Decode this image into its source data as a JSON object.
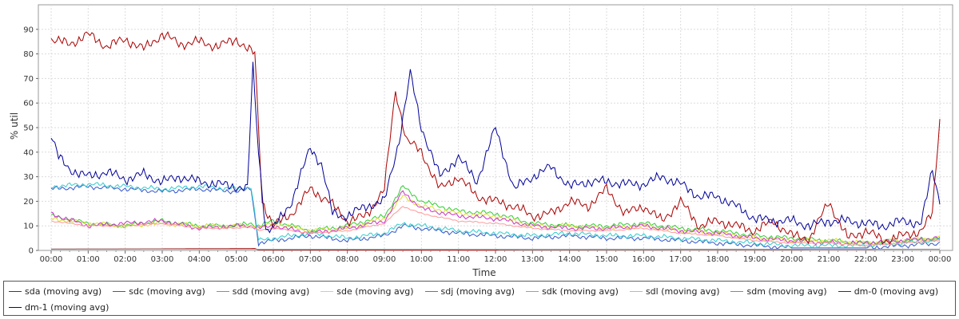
{
  "chart_data": {
    "type": "line",
    "title": "",
    "xlabel": "Time",
    "ylabel": "% util",
    "ylim": [
      0,
      100
    ],
    "y_ticks": [
      0,
      10,
      20,
      30,
      40,
      50,
      60,
      70,
      80,
      90
    ],
    "x_ticks": [
      "00:00",
      "01:00",
      "02:00",
      "03:00",
      "04:00",
      "05:00",
      "06:00",
      "07:00",
      "08:00",
      "09:00",
      "10:00",
      "11:00",
      "12:00",
      "13:00",
      "14:00",
      "15:00",
      "16:00",
      "17:00",
      "18:00",
      "19:00",
      "20:00",
      "21:00",
      "22:00",
      "23:00",
      "00:00"
    ],
    "grid": true,
    "legend_position": "bottom",
    "series": [
      {
        "name": "sda (moving avg)",
        "color": "#cc0000",
        "x": [
          0,
          5.5,
          5.6,
          12,
          12.1,
          24
        ],
        "values": [
          0.5,
          0.8,
          0.2,
          0.1,
          0.3,
          0.5
        ]
      },
      {
        "name": "sdc (moving avg)",
        "color": "#3355cc",
        "x": [
          0,
          1,
          2,
          3,
          4,
          5,
          5.4,
          5.6,
          6,
          7,
          8,
          9,
          9.5,
          10,
          11,
          12,
          13,
          14,
          15,
          16,
          17,
          18,
          19,
          20,
          21,
          22,
          23,
          24
        ],
        "values": [
          25,
          26,
          25,
          24,
          25,
          24,
          25,
          3,
          4,
          6,
          4,
          6,
          10,
          9,
          7,
          6,
          5,
          6,
          5,
          5,
          4,
          3,
          2,
          1,
          1,
          1,
          2,
          3
        ]
      },
      {
        "name": "sdd (moving avg)",
        "color": "#33cc33",
        "x": [
          0,
          1,
          2,
          3,
          4,
          5,
          5.4,
          5.6,
          6,
          7,
          8,
          9,
          9.5,
          10,
          11,
          12,
          13,
          14,
          15,
          16,
          17,
          18,
          19,
          20,
          21,
          22,
          23,
          24
        ],
        "values": [
          14,
          11,
          10,
          12,
          10,
          10,
          11,
          10,
          12,
          8,
          10,
          14,
          26,
          20,
          16,
          15,
          11,
          10,
          10,
          11,
          9,
          8,
          6,
          5,
          4,
          3,
          4,
          5
        ]
      },
      {
        "name": "sde (moving avg)",
        "color": "#dddd33",
        "x": [
          0,
          1,
          2,
          3,
          4,
          5,
          5.4,
          5.6,
          6,
          7,
          8,
          9,
          9.5,
          10,
          11,
          12,
          13,
          14,
          15,
          16,
          17,
          18,
          19,
          20,
          21,
          22,
          23,
          24
        ],
        "values": [
          13,
          11,
          10,
          11,
          10,
          10,
          10,
          9,
          11,
          8,
          9,
          13,
          22,
          18,
          15,
          14,
          10,
          10,
          9,
          10,
          8,
          7,
          5,
          4,
          4,
          3,
          4,
          5
        ]
      },
      {
        "name": "sdj (moving avg)",
        "color": "#cc33cc",
        "x": [
          0,
          1,
          2,
          3,
          4,
          5,
          5.4,
          5.6,
          6,
          7,
          8,
          9,
          9.5,
          10,
          11,
          12,
          13,
          14,
          15,
          16,
          17,
          18,
          19,
          20,
          21,
          22,
          23,
          24
        ],
        "values": [
          15,
          10,
          11,
          12,
          9,
          10,
          10,
          9,
          10,
          7,
          9,
          12,
          24,
          17,
          14,
          13,
          10,
          9,
          9,
          10,
          8,
          7,
          5,
          4,
          3,
          3,
          4,
          5
        ]
      },
      {
        "name": "sdk (moving avg)",
        "color": "#33cccc",
        "x": [
          0,
          1,
          2,
          3,
          4,
          5,
          5.4,
          5.6,
          6,
          7,
          8,
          9,
          9.5,
          10,
          11,
          12,
          13,
          14,
          15,
          16,
          17,
          18,
          19,
          20,
          21,
          22,
          23,
          24
        ],
        "values": [
          26,
          27,
          26,
          25,
          26,
          25,
          26,
          4,
          5,
          7,
          5,
          7,
          11,
          10,
          8,
          7,
          6,
          7,
          6,
          6,
          5,
          4,
          3,
          2,
          2,
          2,
          3,
          4
        ]
      },
      {
        "name": "sdl (moving avg)",
        "color": "#ff9999",
        "x": [
          0,
          1,
          2,
          3,
          4,
          5,
          5.4,
          5.6,
          6,
          7,
          8,
          9,
          9.5,
          10,
          11,
          12,
          13,
          14,
          15,
          16,
          17,
          18,
          19,
          20,
          21,
          22,
          23,
          24
        ],
        "values": [
          12,
          10,
          10,
          11,
          9,
          9,
          10,
          8,
          9,
          7,
          8,
          11,
          18,
          15,
          12,
          11,
          9,
          8,
          8,
          9,
          7,
          6,
          4,
          3,
          3,
          2,
          3,
          4
        ]
      },
      {
        "name": "sdm (moving avg)",
        "color": "#888888",
        "x": [
          0,
          5.5,
          5.6,
          12,
          24
        ],
        "values": [
          0.6,
          0.6,
          0.4,
          0.4,
          0.5
        ]
      },
      {
        "name": "dm-0 (moving avg)",
        "color": "#aa0000",
        "x": [
          0,
          0.5,
          1,
          1.5,
          2,
          2.5,
          3,
          3.5,
          4,
          4.5,
          5,
          5.3,
          5.5,
          5.7,
          6,
          6.5,
          7,
          7.5,
          8,
          8.5,
          9,
          9.3,
          9.6,
          10,
          10.5,
          11,
          11.5,
          12,
          12.5,
          13,
          13.5,
          14,
          14.5,
          15,
          15.5,
          16,
          16.5,
          17,
          17.5,
          18,
          18.5,
          19,
          19.5,
          20,
          20.5,
          21,
          21.5,
          22,
          22.5,
          23,
          23.5,
          23.8,
          24
        ],
        "values": [
          86,
          84,
          88,
          83,
          86,
          82,
          88,
          84,
          85,
          83,
          86,
          82,
          80,
          20,
          10,
          15,
          25,
          20,
          12,
          14,
          25,
          65,
          45,
          40,
          25,
          30,
          22,
          20,
          18,
          14,
          15,
          20,
          18,
          25,
          15,
          18,
          12,
          20,
          10,
          12,
          10,
          8,
          12,
          6,
          5,
          20,
          5,
          8,
          4,
          6,
          8,
          15,
          54
        ]
      },
      {
        "name": "dm-1 (moving avg)",
        "color": "#000099",
        "x": [
          0,
          0.2,
          0.5,
          1,
          1.5,
          2,
          2.5,
          3,
          3.5,
          4,
          4.5,
          5,
          5.3,
          5.45,
          5.6,
          5.8,
          6,
          6.5,
          7,
          7.3,
          7.6,
          8,
          8.5,
          9,
          9.4,
          9.7,
          10,
          10.5,
          11,
          11.5,
          12,
          12.5,
          13,
          13.5,
          14,
          14.5,
          15,
          15.5,
          16,
          16.5,
          17,
          17.5,
          18,
          18.5,
          19,
          19.5,
          20,
          20.5,
          21,
          21.5,
          22,
          22.5,
          23,
          23.5,
          23.8,
          24
        ],
        "values": [
          47,
          38,
          33,
          30,
          32,
          29,
          31,
          28,
          30,
          28,
          27,
          26,
          25,
          75,
          40,
          8,
          9,
          20,
          42,
          35,
          15,
          14,
          18,
          20,
          45,
          72,
          50,
          30,
          38,
          28,
          50,
          25,
          30,
          34,
          26,
          28,
          28,
          27,
          27,
          30,
          27,
          22,
          22,
          18,
          13,
          12,
          12,
          10,
          12,
          12,
          11,
          10,
          12,
          11,
          33,
          20
        ]
      }
    ]
  }
}
